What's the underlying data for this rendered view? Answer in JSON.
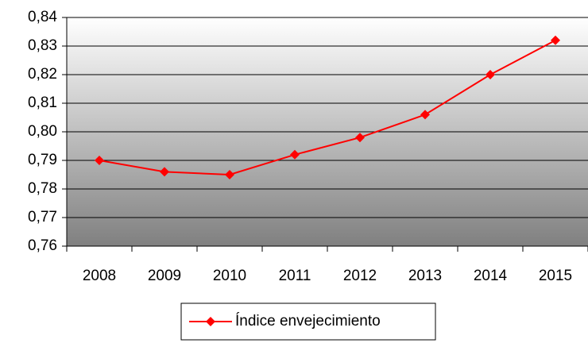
{
  "chart_data": {
    "type": "line",
    "categories": [
      "2008",
      "2009",
      "2010",
      "2011",
      "2012",
      "2013",
      "2014",
      "2015"
    ],
    "series": [
      {
        "name": "Índice envejecimiento",
        "color": "#ff0000",
        "values": [
          0.79,
          0.786,
          0.785,
          0.792,
          0.798,
          0.806,
          0.82,
          0.832
        ]
      }
    ],
    "ylim": [
      0.76,
      0.84
    ],
    "yticks": [
      {
        "value": 0.76,
        "label": "0,76"
      },
      {
        "value": 0.77,
        "label": "0,77"
      },
      {
        "value": 0.78,
        "label": "0,78"
      },
      {
        "value": 0.79,
        "label": "0,79"
      },
      {
        "value": 0.8,
        "label": "0,80"
      },
      {
        "value": 0.81,
        "label": "0,81"
      },
      {
        "value": 0.82,
        "label": "0,82"
      },
      {
        "value": 0.83,
        "label": "0,83"
      },
      {
        "value": 0.84,
        "label": "0,84"
      }
    ],
    "grid": true,
    "legend": "bottom"
  }
}
